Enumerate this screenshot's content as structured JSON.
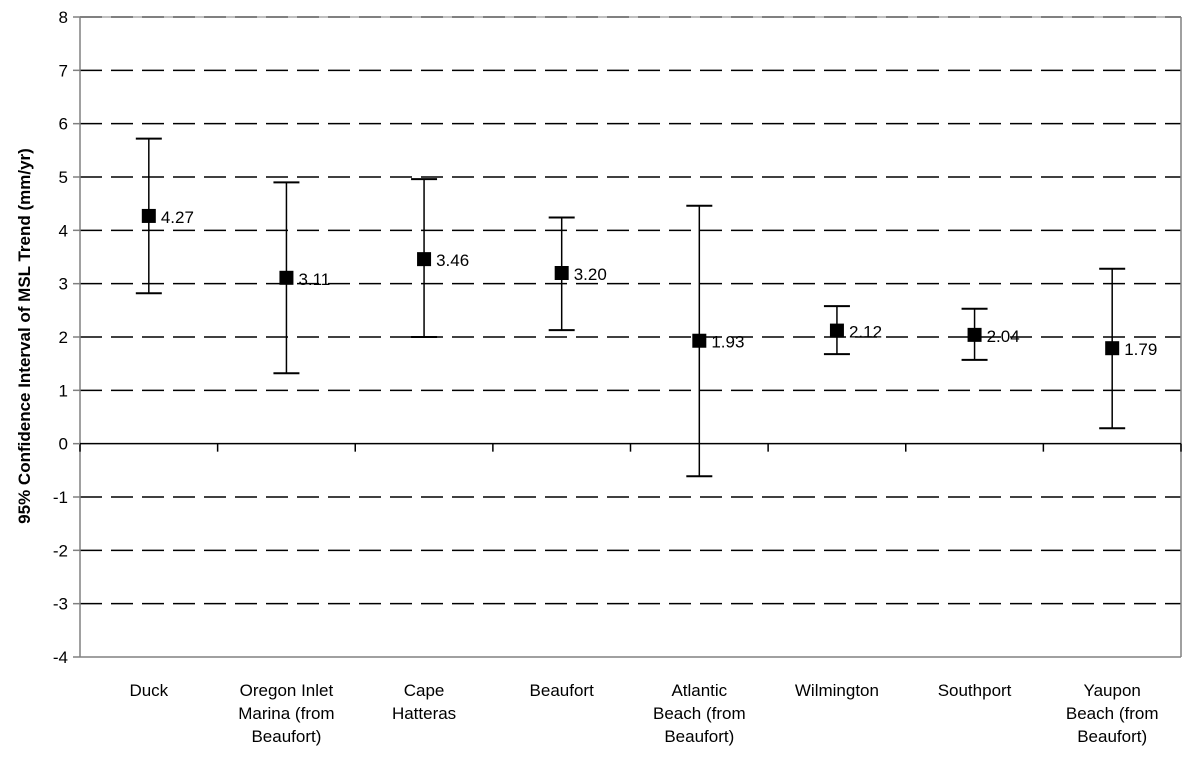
{
  "chart_data": {
    "type": "scatter",
    "title": "",
    "xlabel": "",
    "ylabel": "95% Confidence Interval of MSL Trend (mm/yr)",
    "ylim": [
      -4,
      8
    ],
    "yticks": [
      "8",
      "7",
      "6",
      "5",
      "4",
      "3",
      "2",
      "1",
      "0",
      "-1",
      "-2",
      "-3",
      "-4"
    ],
    "grid": "horizontal dashed",
    "legend": "none",
    "categories": [
      [
        "Duck"
      ],
      [
        "Oregon Inlet",
        "Marina (from",
        "Beaufort)"
      ],
      [
        "Cape",
        "Hatteras"
      ],
      [
        "Beaufort"
      ],
      [
        "Atlantic",
        "Beach (from",
        "Beaufort)"
      ],
      [
        "Wilmington"
      ],
      [
        "Southport"
      ],
      [
        "Yaupon",
        "Beach (from",
        "Beaufort)"
      ]
    ],
    "values": [
      4.27,
      3.11,
      3.46,
      3.2,
      1.93,
      2.12,
      2.04,
      1.79
    ],
    "value_labels": [
      "4.27",
      "3.11",
      "3.46",
      "3.20",
      "1.93",
      "2.12",
      "2.04",
      "1.79"
    ],
    "upper": [
      5.72,
      4.9,
      4.96,
      4.24,
      4.46,
      2.58,
      2.53,
      3.28
    ],
    "lower": [
      2.82,
      1.32,
      2.0,
      2.13,
      -0.61,
      1.68,
      1.57,
      0.29
    ],
    "colors": {
      "marker": "#000000",
      "grid": "#000000",
      "axis": "#808080"
    }
  }
}
